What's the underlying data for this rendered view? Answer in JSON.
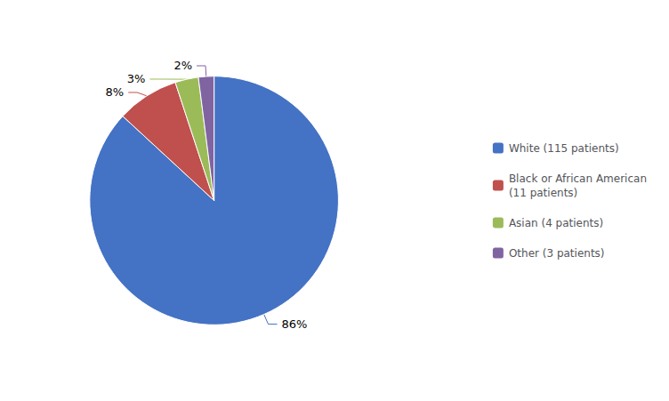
{
  "chart_data": {
    "type": "pie",
    "categories": [
      "White (115 patients)",
      "Black or African American\n(11 patients)",
      "Asian (4 patients)",
      "Other (3 patients)"
    ],
    "values": [
      86,
      8,
      3,
      2
    ],
    "value_labels": [
      "86%",
      "8%",
      "3%",
      "2%"
    ],
    "colors": [
      "#4472C4",
      "#C0504D",
      "#9BBB59",
      "#8064A2"
    ],
    "data_labels": true,
    "legend": "right"
  }
}
